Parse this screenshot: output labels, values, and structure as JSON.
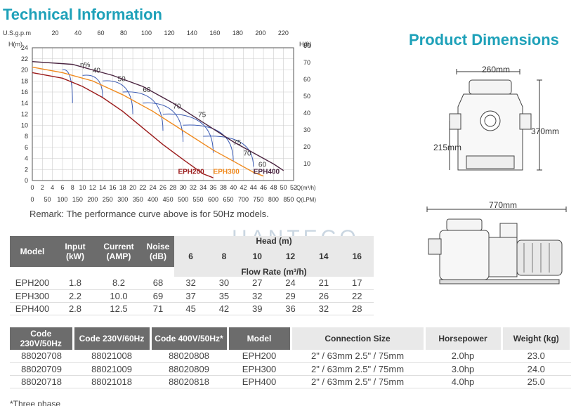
{
  "titles": {
    "technical": "Technical Information",
    "dimensions": "Product Dimensions"
  },
  "chart": {
    "top_axis_label": "U.S.g.p.m",
    "top_ticks": [
      "20",
      "40",
      "60",
      "80",
      "100",
      "120",
      "140",
      "160",
      "180",
      "200",
      "220"
    ],
    "left_axis_label": "H(m)",
    "left_ticks": [
      "0",
      "2",
      "4",
      "6",
      "8",
      "10",
      "12",
      "14",
      "16",
      "18",
      "20",
      "22",
      "24"
    ],
    "right_axis_label": "H(ft)",
    "right_ticks": [
      "10",
      "20",
      "30",
      "40",
      "50",
      "60",
      "70",
      "80"
    ],
    "bottom1_ticks": [
      "0",
      "2",
      "4",
      "6",
      "8",
      "10",
      "12",
      "14",
      "16",
      "18",
      "20",
      "22",
      "24",
      "26",
      "28",
      "30",
      "32",
      "34",
      "36",
      "38",
      "40",
      "42",
      "44",
      "46",
      "48",
      "50",
      "52"
    ],
    "bottom1_unit": "Q(m³/h)",
    "bottom2_ticks": [
      "0",
      "50",
      "100",
      "150",
      "200",
      "250",
      "300",
      "350",
      "400",
      "450",
      "500",
      "550",
      "600",
      "650",
      "700",
      "750",
      "800",
      "850"
    ],
    "bottom2_unit": "Q(LPM)",
    "efficiency_symbol": "η%",
    "efficiency_labels": [
      "40",
      "50",
      "60",
      "70",
      "75",
      "75",
      "70",
      "60"
    ],
    "series_labels": [
      "EPH200",
      "EPH300",
      "EPH400"
    ]
  },
  "chart_data": {
    "type": "line",
    "xlabel": "Q(m³/h)",
    "ylabel": "H(m)",
    "xlim": [
      0,
      52
    ],
    "ylim": [
      0,
      24
    ],
    "series": [
      {
        "name": "EPH200",
        "color": "#9b1b1b",
        "x": [
          0,
          6,
          10,
          14,
          18,
          22,
          26,
          30,
          34,
          36
        ],
        "y": [
          19.5,
          18.5,
          17,
          15,
          12.5,
          9.5,
          6.5,
          3.8,
          1.2,
          0.5
        ]
      },
      {
        "name": "EPH300",
        "color": "#f08a1e",
        "x": [
          0,
          6,
          12,
          18,
          24,
          30,
          36,
          40,
          44,
          46
        ],
        "y": [
          20.5,
          19.5,
          18,
          15.5,
          12.5,
          9,
          5.5,
          3.5,
          1.5,
          0.8
        ]
      },
      {
        "name": "EPH400",
        "color": "#4a2440",
        "x": [
          0,
          8,
          16,
          22,
          28,
          34,
          40,
          44,
          48,
          50
        ],
        "y": [
          21.5,
          21,
          19,
          17,
          14,
          10.5,
          7,
          5,
          3,
          1.8
        ]
      }
    ]
  },
  "remark": "Remark: The performance curve above is for 50Hz models.",
  "dims": {
    "w1": "260mm",
    "h1": "370mm",
    "h2": "215mm",
    "len": "770mm"
  },
  "watermark": "HANTECO",
  "table1": {
    "headers": {
      "model": "Model",
      "input": "Input (kW)",
      "current": "Current (AMP)",
      "noise": "Noise (dB)",
      "head": "Head (m)",
      "flow": "Flow Rate (m³/h)"
    },
    "heads": [
      "6",
      "8",
      "10",
      "12",
      "14",
      "16"
    ],
    "rows": [
      {
        "model": "EPH200",
        "input": "1.8",
        "current": "8.2",
        "noise": "68",
        "f": [
          "32",
          "30",
          "27",
          "24",
          "21",
          "17"
        ]
      },
      {
        "model": "EPH300",
        "input": "2.2",
        "current": "10.0",
        "noise": "69",
        "f": [
          "37",
          "35",
          "32",
          "29",
          "26",
          "22"
        ]
      },
      {
        "model": "EPH400",
        "input": "2.8",
        "current": "12.5",
        "noise": "71",
        "f": [
          "45",
          "42",
          "39",
          "36",
          "32",
          "28"
        ]
      }
    ]
  },
  "table2": {
    "headers": {
      "c1": "Code 230V/50Hz",
      "c2": "Code 230V/60Hz",
      "c3": "Code 400V/50Hz*",
      "model": "Model",
      "conn": "Connection Size",
      "hp": "Horsepower",
      "wt": "Weight (kg)"
    },
    "rows": [
      {
        "c1": "88020708",
        "c2": "88021008",
        "c3": "88020808",
        "model": "EPH200",
        "conn": "2\" / 63mm  2.5\" / 75mm",
        "hp": "2.0hp",
        "wt": "23.0"
      },
      {
        "c1": "88020709",
        "c2": "88021009",
        "c3": "88020809",
        "model": "EPH300",
        "conn": "2\" / 63mm  2.5\" / 75mm",
        "hp": "3.0hp",
        "wt": "24.0"
      },
      {
        "c1": "88020718",
        "c2": "88021018",
        "c3": "88020818",
        "model": "EPH400",
        "conn": "2\" / 63mm  2.5\" / 75mm",
        "hp": "4.0hp",
        "wt": "25.0"
      }
    ]
  },
  "footnote": "*Three phase"
}
